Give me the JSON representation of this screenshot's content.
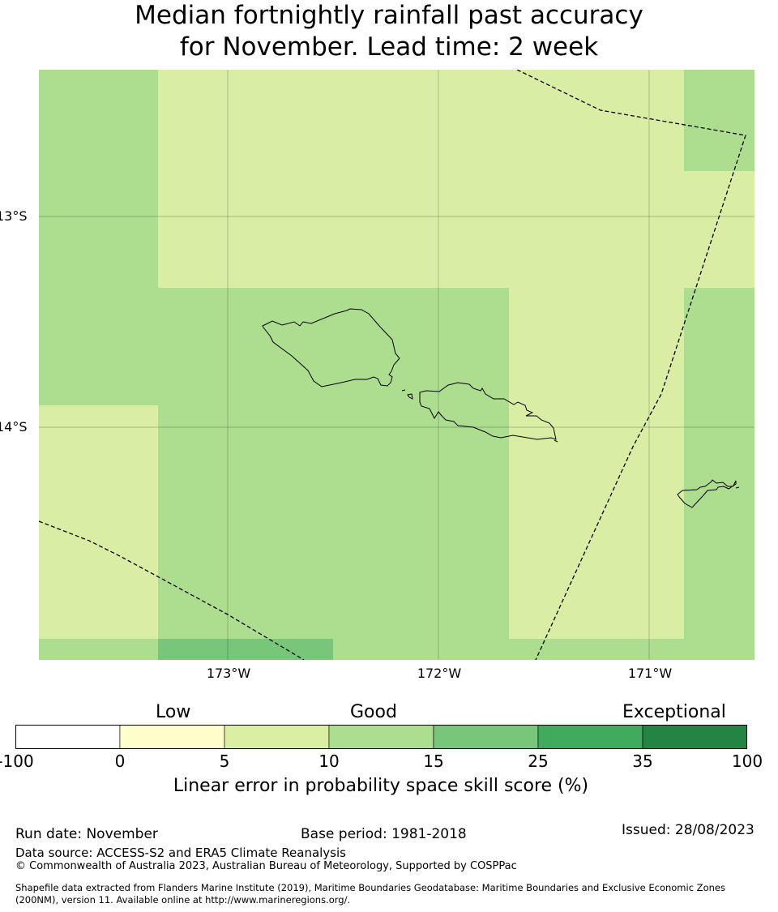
{
  "title": {
    "line1": "Median fortnightly rainfall past accuracy",
    "line2": "for November. Lead time: 2 week"
  },
  "map": {
    "lat_labels": [
      "13°S",
      "14°S"
    ],
    "lon_labels": [
      "173°W",
      "172°W",
      "171°W"
    ],
    "colors": {
      "very_light": "#d9eea4",
      "light": "#addd8e",
      "medium": "#78c679",
      "coast": "#000000"
    }
  },
  "colorbar": {
    "categories": [
      "Low",
      "Good",
      "Exceptional"
    ],
    "ticks": [
      "-100",
      "0",
      "5",
      "10",
      "15",
      "25",
      "35",
      "100"
    ],
    "colors": [
      "#ffffff",
      "#ffffcc",
      "#d9f0a3",
      "#addd8e",
      "#78c679",
      "#41ab5d",
      "#238443"
    ],
    "label": "Linear error in probability space skill score (%)"
  },
  "footer": {
    "run_date": "Run date: November",
    "base_period": "Base period: 1981-2018",
    "issued": "Issued: 28/08/2023",
    "data_source": "Data source: ACCESS-S2 and ERA5 Climate Reanalysis",
    "copyright": "© Commonwealth of Australia 2023, Australian Bureau of Meteorology, Supported by COSPPac",
    "shapefile_line1": "Shapefile data extracted from Flanders Marine Institute (2019), Maritime Boundaries Geodatabase: Maritime Boundaries and Exclusive Economic Zones",
    "shapefile_line2": "(200NM), version 11. Available online at http://www.marineregions.org/."
  }
}
